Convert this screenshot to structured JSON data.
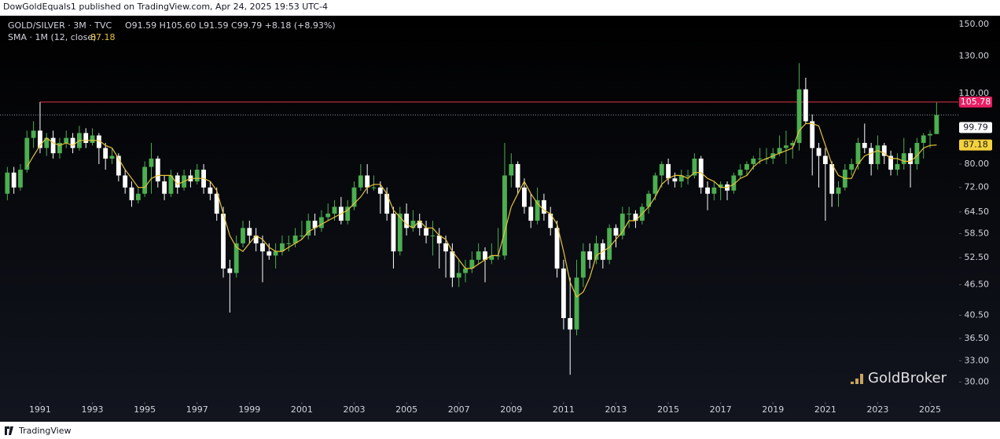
{
  "header": {
    "published": "DowGoldEquals1 published on TradingView.com, Apr 24, 2025 19:53 UTC-4"
  },
  "footer": {
    "brand": "TradingView"
  },
  "chart_data": {
    "type": "candlestick",
    "symbol": "GOLD/SILVER · 3M · TVC",
    "ohlc_text": "O91.59 H105.60 L91.59 C99.79 +8.18 (+8.93%)",
    "watermark": "GoldBroker",
    "up_color": "#4caf50",
    "down_color": "#ffffff",
    "log_scale": true,
    "x": [
      1989.75,
      1990,
      1990.25,
      1990.5,
      1990.75,
      1991,
      1991.25,
      1991.5,
      1991.75,
      1992,
      1992.25,
      1992.5,
      1992.75,
      1993,
      1993.25,
      1993.5,
      1993.75,
      1994,
      1994.25,
      1994.5,
      1994.75,
      1995,
      1995.25,
      1995.5,
      1995.75,
      1996,
      1996.25,
      1996.5,
      1996.75,
      1997,
      1997.25,
      1997.5,
      1997.75,
      1998,
      1998.25,
      1998.5,
      1998.75,
      1999,
      1999.25,
      1999.5,
      1999.75,
      2000,
      2000.25,
      2000.5,
      2000.75,
      2001,
      2001.25,
      2001.5,
      2001.75,
      2002,
      2002.25,
      2002.5,
      2002.75,
      2003,
      2003.25,
      2003.5,
      2003.75,
      2004,
      2004.25,
      2004.5,
      2004.75,
      2005,
      2005.25,
      2005.5,
      2005.75,
      2006,
      2006.25,
      2006.5,
      2006.75,
      2007,
      2007.25,
      2007.5,
      2007.75,
      2008,
      2008.25,
      2008.5,
      2008.75,
      2009,
      2009.25,
      2009.5,
      2009.75,
      2010,
      2010.25,
      2010.5,
      2010.75,
      2011,
      2011.25,
      2011.5,
      2011.75,
      2012,
      2012.25,
      2012.5,
      2012.75,
      2013,
      2013.25,
      2013.5,
      2013.75,
      2014,
      2014.25,
      2014.5,
      2014.75,
      2015,
      2015.25,
      2015.5,
      2015.75,
      2016,
      2016.25,
      2016.5,
      2016.75,
      2017,
      2017.25,
      2017.5,
      2017.75,
      2018,
      2018.25,
      2018.5,
      2018.75,
      2019,
      2019.25,
      2019.5,
      2019.75,
      2020,
      2020.25,
      2020.5,
      2020.75,
      2021,
      2021.25,
      2021.5,
      2021.75,
      2022,
      2022.25,
      2022.5,
      2022.75,
      2023,
      2023.25,
      2023.5,
      2023.75,
      2024,
      2024.25,
      2024.5,
      2024.75,
      2025,
      2025.25
    ],
    "ohlc": [
      [
        70,
        79,
        68,
        77
      ],
      [
        77,
        79,
        70,
        72
      ],
      [
        72,
        80,
        71,
        78
      ],
      [
        78,
        93,
        77,
        90
      ],
      [
        90,
        97,
        86,
        93
      ],
      [
        93,
        105.78,
        84,
        86
      ],
      [
        86,
        92,
        83,
        90
      ],
      [
        90,
        93,
        82,
        84
      ],
      [
        84,
        90,
        82,
        88
      ],
      [
        88,
        93,
        86,
        90
      ],
      [
        90,
        92,
        84,
        86
      ],
      [
        86,
        95,
        85,
        92
      ],
      [
        92,
        94,
        86,
        88
      ],
      [
        88,
        94,
        87,
        91
      ],
      [
        91,
        92,
        80,
        86
      ],
      [
        86,
        88,
        78,
        82
      ],
      [
        82,
        86,
        80,
        83
      ],
      [
        83,
        84,
        74,
        76
      ],
      [
        76,
        78,
        70,
        72
      ],
      [
        72,
        74,
        66,
        68
      ],
      [
        68,
        72,
        67,
        70
      ],
      [
        70,
        81,
        69,
        79
      ],
      [
        79,
        88,
        70,
        82
      ],
      [
        82,
        83,
        72,
        74
      ],
      [
        74,
        76,
        68,
        70
      ],
      [
        70,
        78,
        69,
        76
      ],
      [
        76,
        77,
        70,
        72
      ],
      [
        72,
        78,
        71,
        76
      ],
      [
        76,
        78,
        72,
        74
      ],
      [
        74,
        80,
        73,
        78
      ],
      [
        78,
        80,
        70,
        72
      ],
      [
        72,
        74,
        68,
        70
      ],
      [
        70,
        72,
        62,
        64
      ],
      [
        64,
        66,
        48,
        50
      ],
      [
        50,
        52,
        41,
        49
      ],
      [
        49,
        58,
        48,
        56
      ],
      [
        56,
        62,
        55,
        60
      ],
      [
        60,
        62,
        56,
        58
      ],
      [
        58,
        60,
        54,
        56
      ],
      [
        56,
        58,
        47,
        54
      ],
      [
        54,
        56,
        52,
        53
      ],
      [
        53,
        56,
        50,
        54
      ],
      [
        54,
        58,
        53,
        56
      ],
      [
        56,
        58,
        54,
        56
      ],
      [
        56,
        60,
        55,
        58
      ],
      [
        58,
        62,
        57,
        58
      ],
      [
        58,
        64,
        57,
        62
      ],
      [
        62,
        64,
        58,
        60
      ],
      [
        60,
        65,
        59,
        63
      ],
      [
        63,
        67,
        62,
        64
      ],
      [
        64,
        68,
        62,
        66
      ],
      [
        66,
        69,
        61,
        62
      ],
      [
        62,
        68,
        61,
        66
      ],
      [
        66,
        74,
        65,
        72
      ],
      [
        72,
        80,
        71,
        76
      ],
      [
        76,
        80,
        70,
        72
      ],
      [
        72,
        76,
        71,
        72
      ],
      [
        72,
        74,
        64,
        70
      ],
      [
        70,
        72,
        62,
        64
      ],
      [
        64,
        66,
        50,
        54
      ],
      [
        54,
        66,
        53,
        64
      ],
      [
        64,
        67,
        58,
        60
      ],
      [
        60,
        65,
        59,
        62
      ],
      [
        62,
        64,
        58,
        60
      ],
      [
        60,
        62,
        56,
        58
      ],
      [
        58,
        62,
        53,
        58
      ],
      [
        58,
        60,
        50,
        56
      ],
      [
        56,
        58,
        48,
        54
      ],
      [
        54,
        56,
        46,
        48
      ],
      [
        48,
        52,
        46,
        49
      ],
      [
        49,
        52,
        47,
        50
      ],
      [
        50,
        54,
        49,
        52
      ],
      [
        52,
        56,
        51,
        54
      ],
      [
        54,
        55,
        47,
        52
      ],
      [
        52,
        56,
        51,
        53
      ],
      [
        53,
        60,
        52,
        53
      ],
      [
        53,
        88,
        52,
        76
      ],
      [
        76,
        84,
        72,
        80
      ],
      [
        80,
        81,
        70,
        72
      ],
      [
        72,
        75,
        64,
        66
      ],
      [
        66,
        70,
        60,
        62
      ],
      [
        62,
        72,
        61,
        68
      ],
      [
        68,
        70,
        62,
        64
      ],
      [
        64,
        66,
        58,
        60
      ],
      [
        60,
        62,
        48,
        50
      ],
      [
        50,
        52,
        38,
        40
      ],
      [
        40,
        48,
        31,
        38
      ],
      [
        38,
        52,
        37,
        48
      ],
      [
        48,
        56,
        46,
        54
      ],
      [
        54,
        56,
        50,
        52
      ],
      [
        52,
        58,
        51,
        56
      ],
      [
        56,
        57,
        50,
        52
      ],
      [
        52,
        61,
        51,
        60
      ],
      [
        60,
        61,
        55,
        58
      ],
      [
        58,
        66,
        57,
        64
      ],
      [
        64,
        66,
        60,
        64
      ],
      [
        64,
        65,
        60,
        62
      ],
      [
        62,
        67,
        61,
        66
      ],
      [
        66,
        71,
        64,
        70
      ],
      [
        70,
        77,
        68,
        76
      ],
      [
        76,
        81,
        72,
        80
      ],
      [
        80,
        82,
        73,
        75
      ],
      [
        75,
        77,
        72,
        74
      ],
      [
        74,
        78,
        72,
        76
      ],
      [
        76,
        78,
        73,
        76
      ],
      [
        76,
        84,
        75,
        82
      ],
      [
        82,
        83,
        70,
        72
      ],
      [
        72,
        74,
        65,
        70
      ],
      [
        70,
        74,
        68,
        72
      ],
      [
        72,
        74,
        68,
        73
      ],
      [
        73,
        74,
        68,
        71
      ],
      [
        71,
        77,
        70,
        76
      ],
      [
        76,
        80,
        75,
        78
      ],
      [
        78,
        81,
        76,
        80
      ],
      [
        80,
        83,
        78,
        82
      ],
      [
        82,
        86,
        80,
        82
      ],
      [
        82,
        86,
        80,
        82
      ],
      [
        82,
        86,
        80,
        84
      ],
      [
        84,
        91,
        83,
        86
      ],
      [
        86,
        93,
        80,
        87
      ],
      [
        87,
        89,
        82,
        88
      ],
      [
        88,
        126,
        85,
        112
      ],
      [
        112,
        118,
        96,
        97
      ],
      [
        97,
        100,
        76,
        86
      ],
      [
        86,
        88,
        72,
        83
      ],
      [
        83,
        86,
        62,
        80
      ],
      [
        80,
        81,
        66,
        70
      ],
      [
        70,
        74,
        66,
        72
      ],
      [
        72,
        80,
        71,
        78
      ],
      [
        78,
        82,
        76,
        80
      ],
      [
        80,
        90,
        78,
        88
      ],
      [
        88,
        96,
        84,
        86
      ],
      [
        86,
        88,
        76,
        80
      ],
      [
        80,
        91,
        78,
        87
      ],
      [
        87,
        88,
        80,
        83
      ],
      [
        83,
        85,
        76,
        78
      ],
      [
        78,
        84,
        76,
        80
      ],
      [
        80,
        90,
        78,
        84
      ],
      [
        84,
        86,
        72,
        80
      ],
      [
        80,
        90,
        78,
        88
      ],
      [
        88,
        92,
        82,
        91
      ],
      [
        91,
        93,
        86,
        91.61
      ],
      [
        91.59,
        105.6,
        91.59,
        99.79
      ]
    ],
    "sma": {
      "name": "SMA · 1M (12, close)",
      "color": "#e8c33a",
      "values": [
        null,
        null,
        null,
        79,
        83,
        87,
        90,
        88,
        87,
        88,
        87,
        89,
        89,
        89,
        89,
        87,
        86,
        82,
        78,
        75,
        72,
        72,
        75,
        76,
        76,
        76,
        73,
        74,
        75,
        75,
        75,
        74,
        71,
        64,
        58,
        55,
        54,
        56,
        58,
        57,
        55,
        54,
        54,
        55,
        56,
        57,
        59,
        60,
        61,
        62,
        63,
        64,
        65,
        67,
        69,
        72,
        73,
        73,
        70,
        65,
        63,
        61,
        60,
        62,
        60,
        60,
        58,
        57,
        54,
        52,
        50,
        50,
        51,
        52,
        53,
        53,
        59,
        66,
        70,
        74,
        70,
        67,
        65,
        64,
        61,
        54,
        47,
        44,
        45,
        48,
        53,
        54,
        55,
        57,
        59,
        62,
        62,
        64,
        66,
        69,
        73,
        75,
        76,
        76,
        75,
        77,
        77,
        75,
        74,
        72,
        72,
        73,
        75,
        76,
        79,
        81,
        82,
        83,
        84,
        85,
        86,
        93,
        96,
        96,
        95,
        87,
        80,
        76,
        75,
        75,
        80,
        83,
        84,
        85,
        84,
        82,
        82,
        81,
        81,
        83,
        86,
        87,
        87.18
      ]
    },
    "resistance": 105.78,
    "resistance_color": "#b22b3c",
    "xlim": [
      1989.47,
      2026.08
    ],
    "xticks": [
      1991,
      1993,
      1995,
      1997,
      1999,
      2001,
      2003,
      2005,
      2007,
      2009,
      2011,
      2013,
      2015,
      2017,
      2019,
      2021,
      2023,
      2025
    ],
    "ylim": [
      27.6,
      156
    ],
    "yticks": [
      {
        "value": 30,
        "label": "30.00"
      },
      {
        "value": 33,
        "label": "33.00"
      },
      {
        "value": 36.5,
        "label": "36.50"
      },
      {
        "value": 40.5,
        "label": "40.50"
      },
      {
        "value": 46.5,
        "label": "46.50"
      },
      {
        "value": 52.5,
        "label": "52.50"
      },
      {
        "value": 58.5,
        "label": "58.50"
      },
      {
        "value": 64.5,
        "label": "64.50"
      },
      {
        "value": 72,
        "label": "72.00"
      },
      {
        "value": 80,
        "label": "80.00"
      },
      {
        "value": 110,
        "label": "110.00"
      },
      {
        "value": 130,
        "label": "130.00"
      },
      {
        "value": 150,
        "label": "150.00"
      }
    ]
  }
}
